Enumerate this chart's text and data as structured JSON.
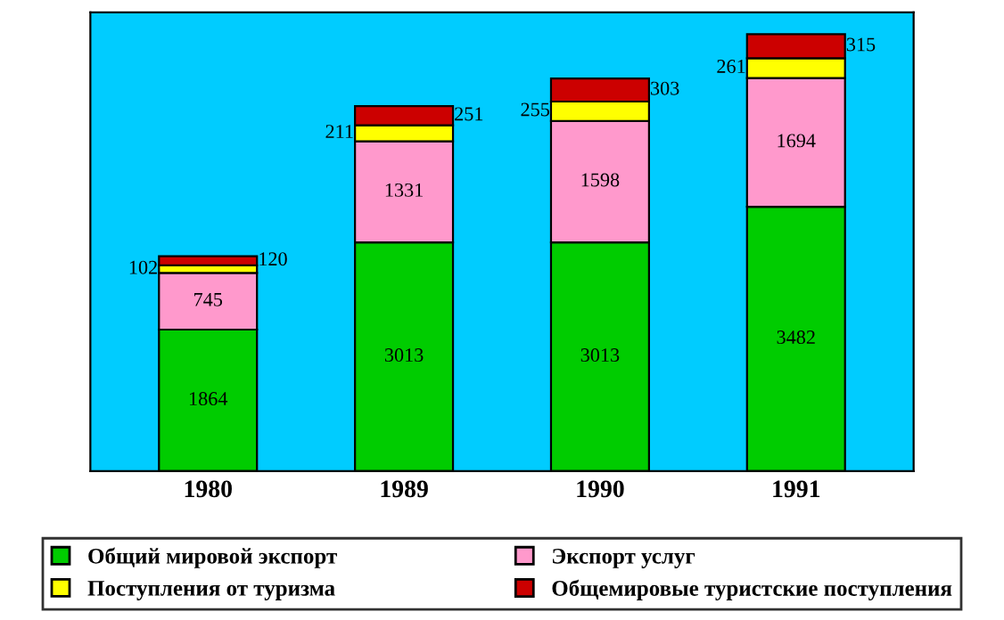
{
  "chart_data": {
    "type": "bar",
    "stacked": true,
    "data_labels": true,
    "legend": "bottom",
    "categories": [
      "1980",
      "1989",
      "1990",
      "1991"
    ],
    "series": [
      {
        "name": "Общий мировой экспорт",
        "color": "#00cc00",
        "values": [
          1864,
          3013,
          3013,
          3482
        ]
      },
      {
        "name": "Экспорт услуг",
        "color": "#ff99cc",
        "values": [
          745,
          1331,
          1598,
          1694
        ]
      },
      {
        "name": "Поступления от туризма",
        "color": "#ffff00",
        "values": [
          102,
          211,
          255,
          261
        ]
      },
      {
        "name": "Общемировые туристские поступления",
        "color": "#cc0000",
        "values": [
          120,
          251,
          303,
          315
        ]
      }
    ]
  }
}
